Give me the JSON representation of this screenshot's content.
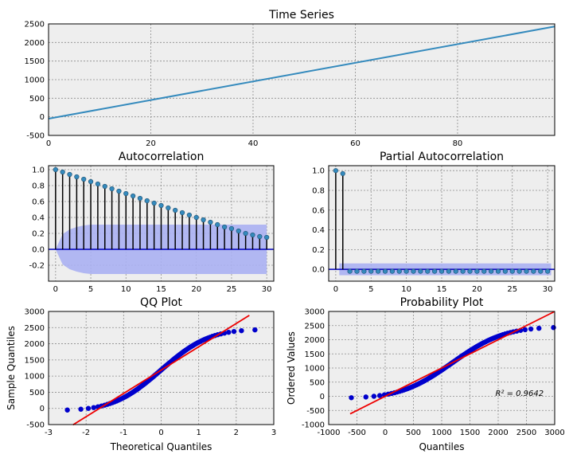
{
  "colors": {
    "plot_bg": "#eeeeee",
    "grid": "#8c8c8c",
    "series_line": "#348abd",
    "stem": "#000000",
    "acf_marker": "#348abd",
    "baseline": "#0000bb",
    "confidence_band": "#aab0f2",
    "qq_points": "#0000cc",
    "fit_line": "#ee0000"
  },
  "chart_data": [
    {
      "id": "time-series",
      "type": "line",
      "title": "Time Series",
      "xlabel": "",
      "ylabel": "",
      "xlim": [
        0,
        99
      ],
      "ylim": [
        -500,
        2500
      ],
      "xticks": [
        0,
        20,
        40,
        60,
        80
      ],
      "yticks": [
        -500,
        0,
        500,
        1000,
        1500,
        2000,
        2500
      ],
      "grid": true,
      "series": [
        {
          "x_start": 0,
          "x_end": 99,
          "y_start": -50,
          "y_end": 2430
        }
      ]
    },
    {
      "id": "autocorrelation",
      "type": "stem",
      "title": "Autocorrelation",
      "xlabel": "",
      "ylabel": "",
      "xlim": [
        -1,
        31
      ],
      "ylim": [
        -0.4,
        1.05
      ],
      "xticks": [
        0,
        5,
        10,
        15,
        20,
        25,
        30
      ],
      "yticks": [
        -0.2,
        0.0,
        0.2,
        0.4,
        0.6,
        0.8,
        1.0
      ],
      "grid": true,
      "lags": [
        0,
        1,
        2,
        3,
        4,
        5,
        6,
        7,
        8,
        9,
        10,
        11,
        12,
        13,
        14,
        15,
        16,
        17,
        18,
        19,
        20,
        21,
        22,
        23,
        24,
        25,
        26,
        27,
        28,
        29,
        30
      ],
      "values": [
        1.0,
        0.97,
        0.94,
        0.91,
        0.88,
        0.85,
        0.82,
        0.79,
        0.76,
        0.73,
        0.7,
        0.67,
        0.64,
        0.61,
        0.58,
        0.55,
        0.52,
        0.49,
        0.46,
        0.43,
        0.4,
        0.37,
        0.34,
        0.31,
        0.28,
        0.26,
        0.23,
        0.2,
        0.18,
        0.16,
        0.15
      ],
      "confidence_upper": [
        0.0,
        0.19,
        0.25,
        0.28,
        0.3,
        0.31,
        0.31,
        0.31,
        0.31,
        0.31,
        0.31,
        0.31,
        0.31,
        0.31,
        0.31,
        0.31,
        0.31,
        0.31,
        0.31,
        0.31,
        0.31,
        0.31,
        0.31,
        0.31,
        0.31,
        0.31,
        0.31,
        0.31,
        0.31,
        0.31,
        0.31
      ]
    },
    {
      "id": "partial-autocorrelation",
      "type": "stem",
      "title": "Partial Autocorrelation",
      "xlabel": "",
      "ylabel": "",
      "xlim": [
        -1,
        31
      ],
      "ylim": [
        -0.12,
        1.05
      ],
      "xticks": [
        0,
        5,
        10,
        15,
        20,
        25,
        30
      ],
      "yticks": [
        0.0,
        0.2,
        0.4,
        0.6,
        0.8,
        1.0
      ],
      "grid": true,
      "lags": [
        0,
        1,
        2,
        3,
        4,
        5,
        6,
        7,
        8,
        9,
        10,
        11,
        12,
        13,
        14,
        15,
        16,
        17,
        18,
        19,
        20,
        21,
        22,
        23,
        24,
        25,
        26,
        27,
        28,
        29,
        30
      ],
      "values": [
        1.0,
        0.97,
        -0.02,
        -0.02,
        -0.02,
        -0.02,
        -0.02,
        -0.02,
        -0.02,
        -0.02,
        -0.02,
        -0.02,
        -0.02,
        -0.02,
        -0.02,
        -0.02,
        -0.02,
        -0.02,
        -0.02,
        -0.02,
        -0.02,
        -0.02,
        -0.02,
        -0.02,
        -0.02,
        -0.02,
        -0.02,
        -0.02,
        -0.02,
        -0.02,
        -0.02
      ],
      "confidence_limit": 0.06
    },
    {
      "id": "qq-plot",
      "type": "scatter",
      "title": "QQ Plot",
      "xlabel": "Theoretical Quantiles",
      "ylabel": "Sample Quantiles",
      "xlim": [
        -3,
        3
      ],
      "ylim": [
        -500,
        3000
      ],
      "xticks": [
        -3,
        -2,
        -1,
        0,
        1,
        2,
        3
      ],
      "yticks": [
        -500,
        0,
        500,
        1000,
        1500,
        2000,
        2500,
        3000
      ],
      "grid": true,
      "reference_line": {
        "x": [
          -2.35,
          2.35
        ],
        "y": [
          -510,
          2880
        ]
      }
    },
    {
      "id": "probability-plot",
      "type": "scatter",
      "title": "Probability Plot",
      "xlabel": "Quantiles",
      "ylabel": "Ordered Values",
      "xlim": [
        -1000,
        3000
      ],
      "ylim": [
        -1000,
        3000
      ],
      "xticks": [
        -1000,
        -500,
        0,
        500,
        1000,
        1500,
        2000,
        2500,
        3000
      ],
      "yticks": [
        -1000,
        -500,
        0,
        500,
        1000,
        1500,
        2000,
        2500,
        3000
      ],
      "grid": true,
      "reference_line": {
        "x": [
          -620,
          3000
        ],
        "y": [
          -620,
          3000
        ]
      },
      "annotation": "R² = 0.9642"
    }
  ]
}
